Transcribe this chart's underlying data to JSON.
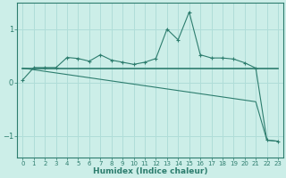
{
  "xlabel": "Humidex (Indice chaleur)",
  "bg_color": "#cceee8",
  "line_color": "#2d7d6e",
  "grid_color": "#b0ddd8",
  "x_values": [
    0,
    1,
    2,
    3,
    4,
    5,
    6,
    7,
    8,
    9,
    10,
    11,
    12,
    13,
    14,
    15,
    16,
    17,
    18,
    19,
    20,
    21,
    22,
    23
  ],
  "y_curve": [
    0.05,
    0.28,
    0.28,
    0.28,
    0.47,
    0.45,
    0.4,
    0.52,
    0.42,
    0.38,
    0.34,
    0.38,
    0.45,
    1.0,
    0.8,
    1.32,
    0.52,
    0.46,
    0.46,
    0.44,
    0.37,
    0.27,
    -1.08,
    -1.1
  ],
  "y_flat": [
    0.27,
    0.27,
    0.27,
    0.27,
    0.27,
    0.27,
    0.27,
    0.27,
    0.27,
    0.27,
    0.27,
    0.27,
    0.27,
    0.27,
    0.27,
    0.27,
    0.27,
    0.27,
    0.27,
    0.27,
    0.27,
    0.27,
    0.27,
    0.27
  ],
  "y_linear": [
    0.27,
    0.24,
    0.21,
    0.18,
    0.15,
    0.12,
    0.09,
    0.06,
    0.03,
    0.0,
    -0.03,
    -0.06,
    -0.09,
    -0.12,
    -0.15,
    -0.18,
    -0.21,
    -0.24,
    -0.27,
    -0.3,
    -0.33,
    -0.36,
    -1.08,
    -1.1
  ],
  "ylim": [
    -1.4,
    1.5
  ],
  "xlim": [
    0,
    23
  ],
  "yticks": [
    -1,
    0,
    1
  ],
  "xticks": [
    0,
    1,
    2,
    3,
    4,
    5,
    6,
    7,
    8,
    9,
    10,
    11,
    12,
    13,
    14,
    15,
    16,
    17,
    18,
    19,
    20,
    21,
    22,
    23
  ]
}
